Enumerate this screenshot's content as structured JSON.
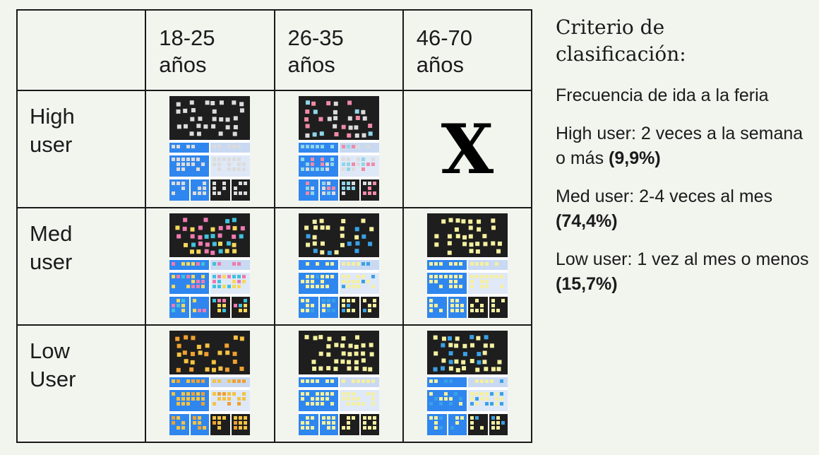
{
  "columns": [
    "18-25\naños",
    "26-35\naños",
    "46-70\naños"
  ],
  "rows": [
    {
      "label": "High\nuser",
      "cells": [
        "board",
        "board",
        "x"
      ]
    },
    {
      "label": "Med\nuser",
      "cells": [
        "board",
        "board",
        "board"
      ]
    },
    {
      "label": "Low\nUser",
      "cells": [
        "board",
        "board",
        "board"
      ]
    }
  ],
  "empty_cell_mark": "X",
  "board_palettes": [
    [
      "#dcdcdc",
      "#dcdcdc",
      "#dcdcdc"
    ],
    [
      "#dcdcdc",
      "#8fd6e8",
      "#f08aa8"
    ],
    [
      "#dcdcdc",
      "#f5f5f5",
      "#f5f5f5"
    ],
    [
      "#3fc2dc",
      "#f07ab0",
      "#f5d85a"
    ],
    [
      "#f5f0a0",
      "#f5f0a0",
      "#3aa0e6"
    ],
    [
      "#f5f0a0",
      "#f5f0a0",
      "#f5f0a0"
    ],
    [
      "#f5c242",
      "#f5c242",
      "#f0a030"
    ],
    [
      "#f5f0a0",
      "#f5f0a0",
      "#f5f0a0"
    ],
    [
      "#f5f0a0",
      "#f5f0a0",
      "#3aa0e6"
    ]
  ],
  "criteria": {
    "title": "Criterio de\nclasificación:",
    "intro": "Frecuencia de ida a la feria",
    "items": [
      {
        "label": "High user: 2 veces a la semana o más ",
        "pct": "(9,9%)"
      },
      {
        "label": "Med user: 2-4 veces al mes ",
        "pct": "(74,4%)"
      },
      {
        "label": "Low user: 1 vez al mes o menos ",
        "pct": "(15,7%)"
      }
    ]
  }
}
